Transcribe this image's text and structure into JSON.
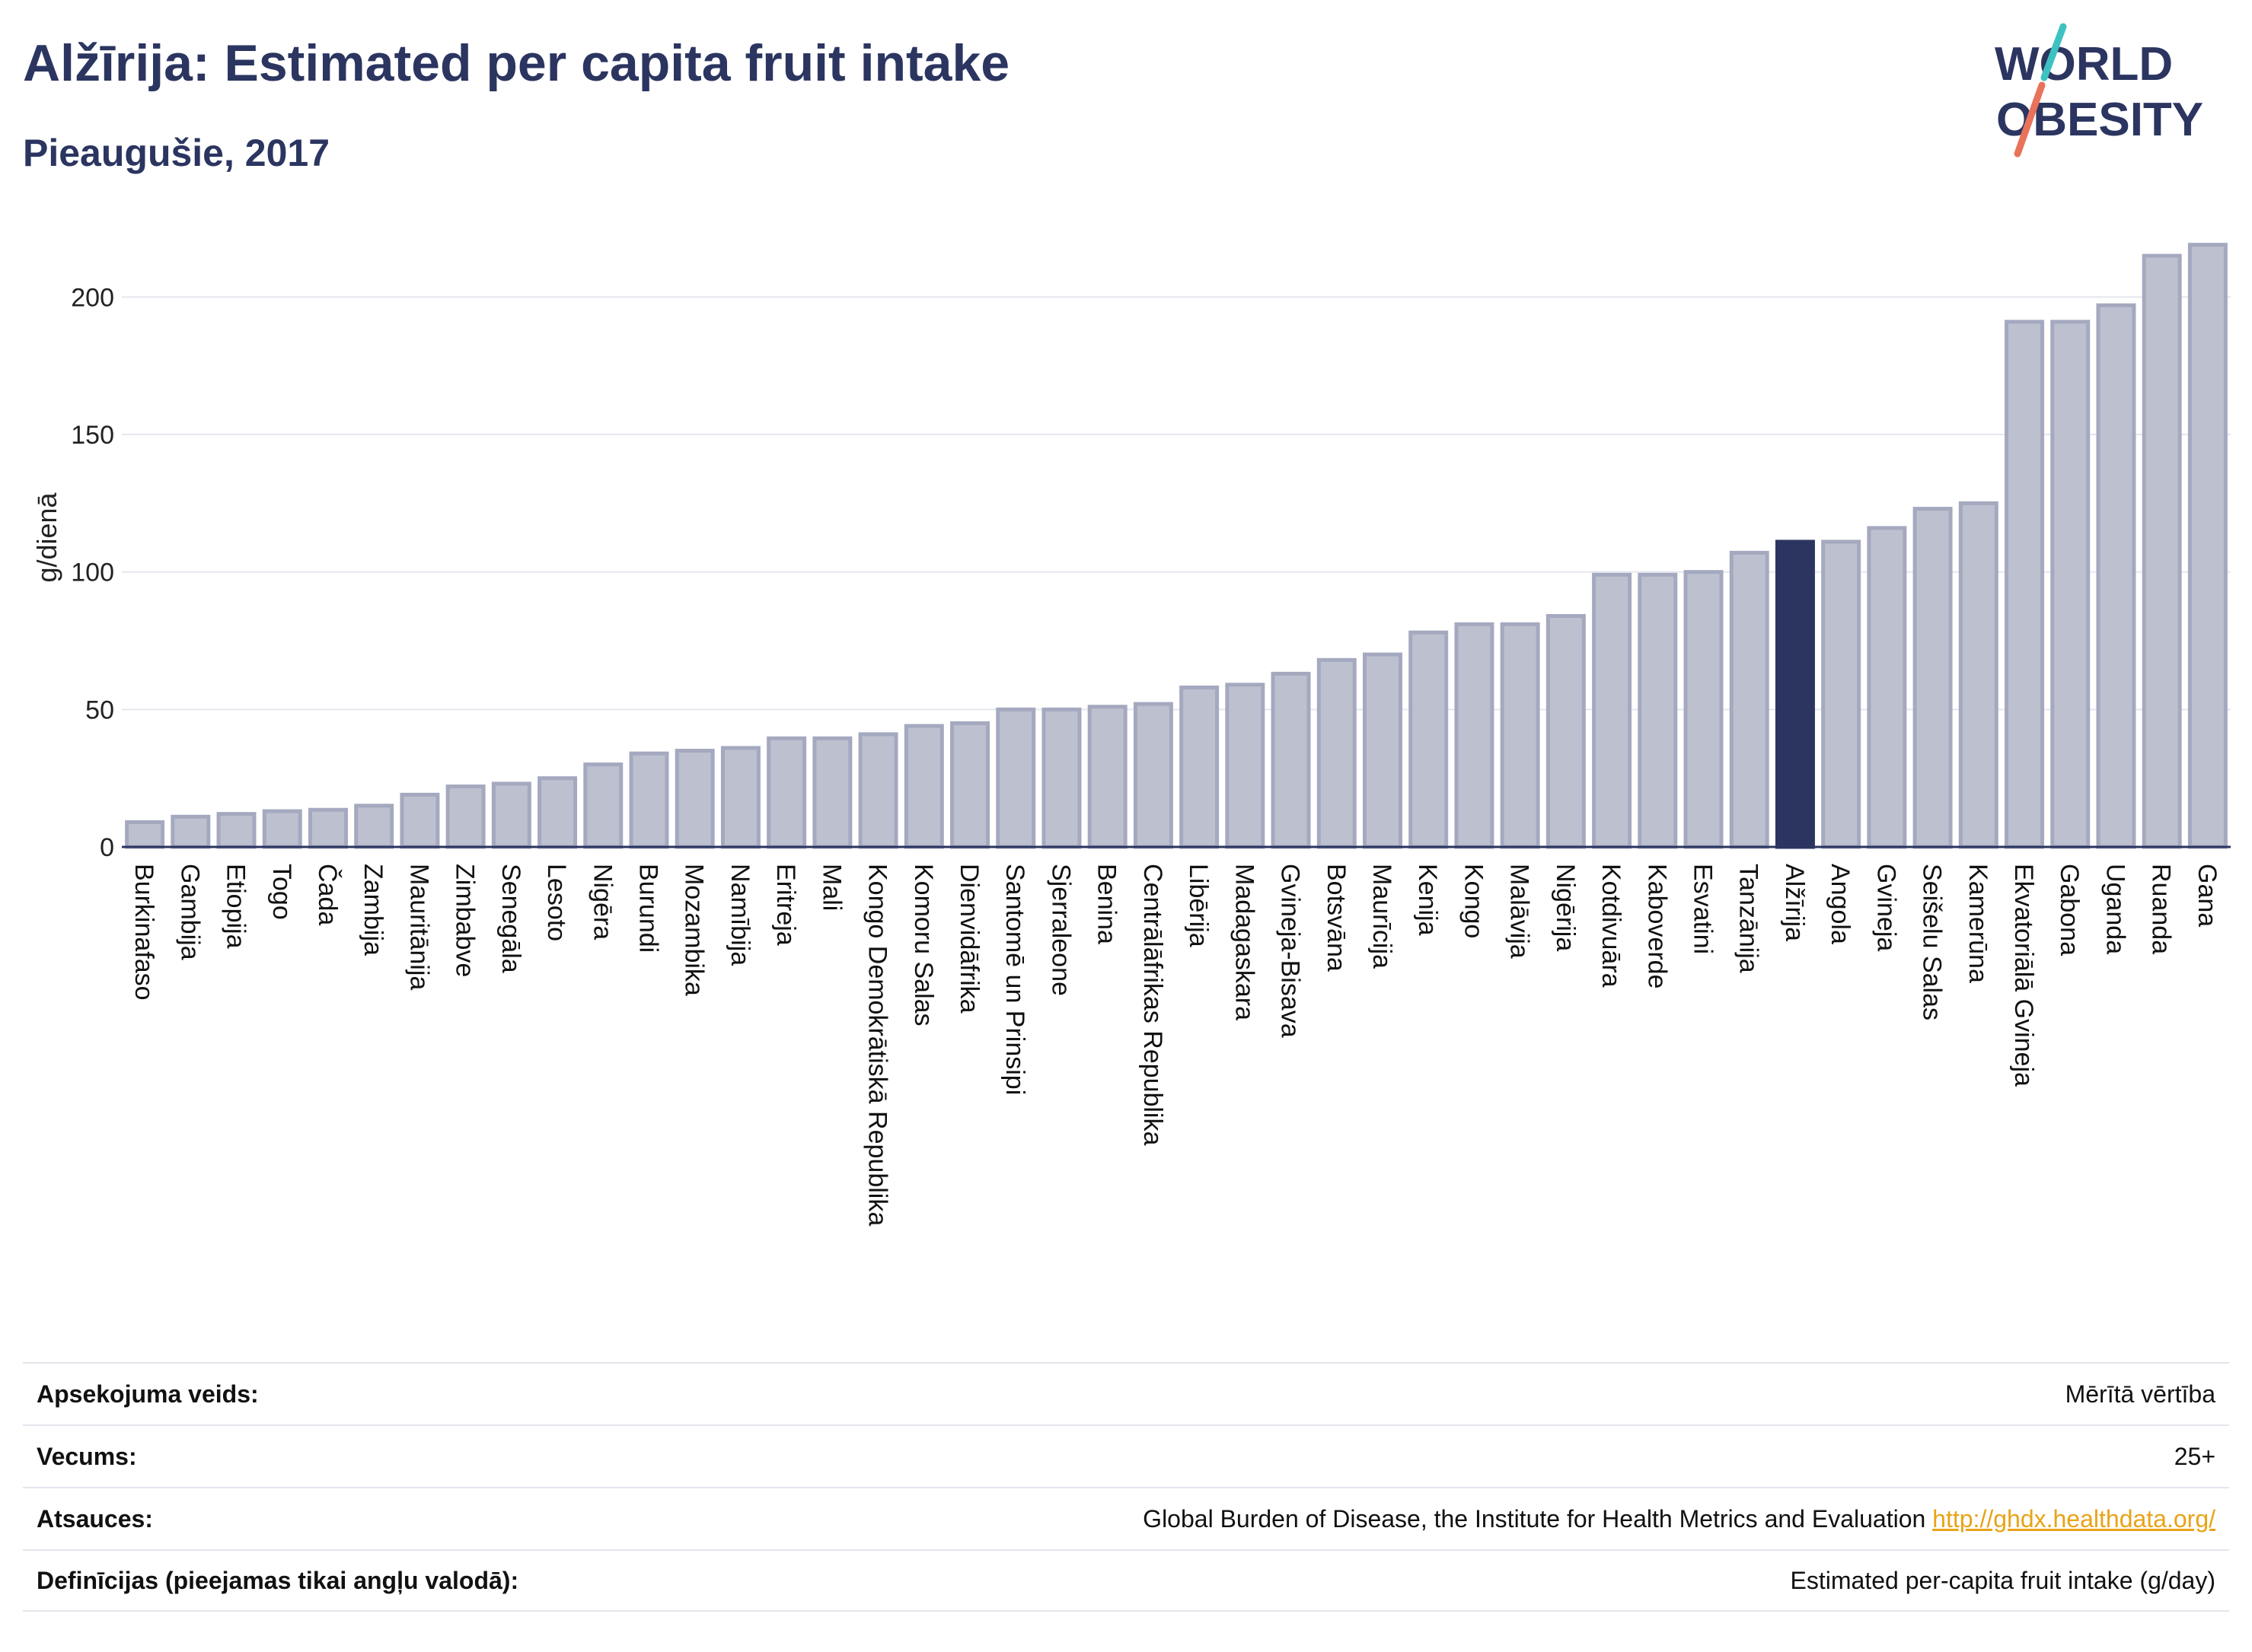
{
  "header": {
    "title": "Alžīrija: Estimated per capita fruit intake",
    "subtitle": "Pieaugušie, 2017",
    "logo_line1": "WORLD",
    "logo_line2": "OBESITY"
  },
  "colors": {
    "bar_default": "#bcc0cf",
    "bar_border": "#a4a9bf",
    "bar_highlight": "#2b3560",
    "title": "#2b3560",
    "grid": "#e4e6ee",
    "link": "#e8a317",
    "logo_slash_top": "#3ec1c1",
    "logo_slash_bottom": "#e8735a"
  },
  "chart_data": {
    "type": "bar",
    "title": "Alžīrija: Estimated per capita fruit intake",
    "subtitle": "Pieaugušie, 2017",
    "ylabel": "g/dienā",
    "xlabel": "",
    "ylim": [
      0,
      225
    ],
    "yticks": [
      0,
      50,
      100,
      150,
      200
    ],
    "grid": true,
    "highlight": "Alžīrija",
    "categories": [
      "Burkinafaso",
      "Gambija",
      "Etiopija",
      "Togo",
      "Čada",
      "Zambija",
      "Mauritānija",
      "Zimbabve",
      "Senegāla",
      "Lesoto",
      "Nigēra",
      "Burundi",
      "Mozambika",
      "Namībija",
      "Eritreja",
      "Mali",
      "Kongo Demokrātiskā Republika",
      "Komoru Salas",
      "Dienvidāfrika",
      "Santomē un Prinsipi",
      "Sjerraleone",
      "Benina",
      "Centrālāfrikas Republika",
      "Libērija",
      "Madagaskara",
      "Gvineja-Bisava",
      "Botsvāna",
      "Maurīcija",
      "Kenija",
      "Kongo",
      "Malāvija",
      "Nigērija",
      "Kotdivuāra",
      "Kaboverde",
      "Esvatini",
      "Tanzānija",
      "Alžīrija",
      "Angola",
      "Gvineja",
      "Seišelu Salas",
      "Kamerūna",
      "Ekvatoriālā Gvineja",
      "Gabona",
      "Uganda",
      "Ruanda",
      "Gana"
    ],
    "values": [
      9,
      11,
      12,
      13,
      13.5,
      15,
      19,
      22,
      23,
      25,
      30,
      34,
      35,
      36,
      39.5,
      39.5,
      41,
      44,
      45,
      50,
      50,
      51,
      52,
      58,
      59,
      63,
      68,
      70,
      78,
      81,
      81,
      84,
      99,
      99,
      100,
      107,
      111,
      111,
      116,
      123,
      125,
      191,
      191,
      197,
      215,
      219
    ]
  },
  "meta": {
    "rows": [
      {
        "label": "Apsekojuma veids:",
        "value": "Mērītā vērtība",
        "link": ""
      },
      {
        "label": "Vecums:",
        "value": "25+",
        "link": ""
      },
      {
        "label": "Atsauces:",
        "value": "Global Burden of Disease, the Institute for Health Metrics and Evaluation ",
        "link": "http://ghdx.healthdata.org/"
      },
      {
        "label": "Definīcijas (pieejamas tikai angļu valodā):",
        "value": "Estimated per-capita fruit intake (g/day)",
        "link": ""
      }
    ]
  }
}
